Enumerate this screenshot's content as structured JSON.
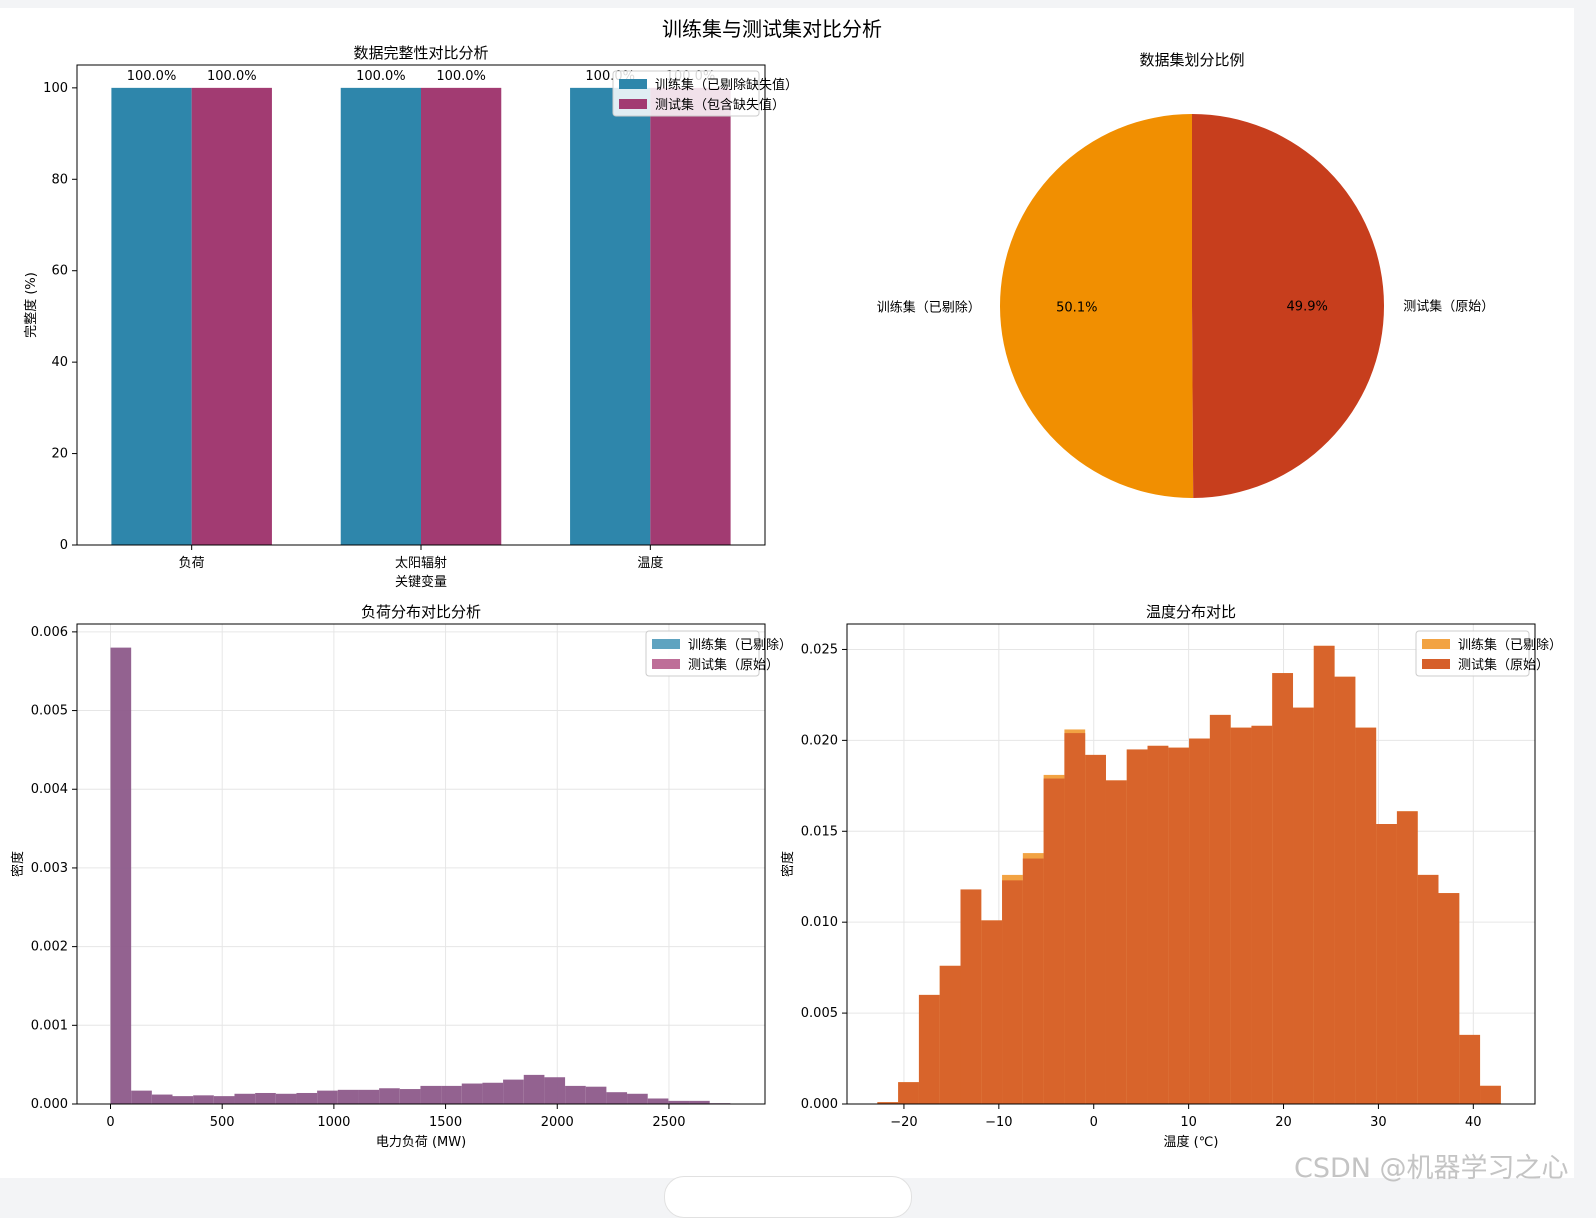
{
  "figure": {
    "suptitle": "训练集与测试集对比分析",
    "watermark": "CSDN @机器学习之心"
  },
  "colors": {
    "train_blue": "#2e86ab",
    "test_magenta": "#a23b72",
    "pie_orange": "#f18f01",
    "pie_red": "#c73e1d",
    "hist_train_blue": "#5fa3c0",
    "hist_test_pink": "#be6e98",
    "hist_overlap": "#8d5a8a",
    "temp_orange": "#f2a343",
    "temp_red": "#d65f2a"
  },
  "chart_data": [
    {
      "id": "completeness",
      "type": "bar",
      "title": "数据完整性对比分析",
      "xlabel": "关键变量",
      "ylabel": "完整度 (%)",
      "categories": [
        "负荷",
        "太阳辐射",
        "温度"
      ],
      "series": [
        {
          "name": "训练集（已剔除缺失值）",
          "values": [
            100,
            100,
            100
          ]
        },
        {
          "name": "测试集（包含缺失值）",
          "values": [
            100,
            100,
            100
          ]
        }
      ],
      "data_labels": [
        [
          "100.0%",
          "100.0%",
          "100.0%"
        ],
        [
          "100.0%",
          "100.0%",
          "100.0%"
        ]
      ],
      "ylim": [
        0,
        105
      ],
      "yticks": [
        0,
        20,
        40,
        60,
        80,
        100
      ],
      "legend": "top-right"
    },
    {
      "id": "split_ratio",
      "type": "pie",
      "title": "数据集划分比例",
      "labels": [
        "训练集（已剔除）",
        "测试集（原始）"
      ],
      "values": [
        50.1,
        49.9
      ],
      "pct_labels": [
        "50.1%",
        "49.9%"
      ]
    },
    {
      "id": "load_dist",
      "type": "histogram",
      "title": "负荷分布对比分析",
      "xlabel": "电力负荷 (MW)",
      "ylabel": "密度",
      "bin_start": 0,
      "bin_width": 92.5,
      "values": [
        0.0058,
        0.00017,
        0.00012,
        0.0001,
        0.00011,
        0.0001,
        0.00013,
        0.00014,
        0.00013,
        0.00014,
        0.00017,
        0.00018,
        0.00018,
        0.0002,
        0.00019,
        0.00023,
        0.00023,
        0.00026,
        0.00027,
        0.00031,
        0.00037,
        0.00034,
        0.00023,
        0.00022,
        0.00015,
        0.00013,
        7e-05,
        4e-05,
        4e-05,
        1e-05
      ],
      "xlim": [
        -150,
        2930
      ],
      "ylim": [
        0,
        0.0061
      ],
      "xticks": [
        0,
        500,
        1000,
        1500,
        2000,
        2500
      ],
      "yticks": [
        "0.000",
        "0.001",
        "0.002",
        "0.003",
        "0.004",
        "0.005",
        "0.006"
      ],
      "legend": [
        "训练集（已剔除）",
        "测试集（原始）"
      ]
    },
    {
      "id": "temp_dist",
      "type": "histogram",
      "title": "温度分布对比",
      "xlabel": "温度 (℃)",
      "ylabel": "密度",
      "bin_start": -22.8,
      "bin_width": 2.19,
      "train_values": [
        0.0001,
        0.0012,
        0.006,
        0.0076,
        0.0118,
        0.0101,
        0.0126,
        0.0138,
        0.0181,
        0.0206,
        0.0192,
        0.0178,
        0.0195,
        0.0197,
        0.0196,
        0.0201,
        0.0214,
        0.0207,
        0.0208,
        0.0237,
        0.0218,
        0.0252,
        0.0235,
        0.0207,
        0.0154,
        0.0161,
        0.0126,
        0.0116,
        0.0038,
        0.001
      ],
      "test_values": [
        0.0001,
        0.0012,
        0.006,
        0.0076,
        0.0118,
        0.0101,
        0.0123,
        0.0135,
        0.0179,
        0.0204,
        0.0192,
        0.0178,
        0.0195,
        0.0197,
        0.0196,
        0.0201,
        0.0214,
        0.0207,
        0.0208,
        0.0237,
        0.0218,
        0.0252,
        0.0235,
        0.0207,
        0.0154,
        0.0161,
        0.0126,
        0.0116,
        0.0038,
        0.001
      ],
      "xlim": [
        -26,
        46.5
      ],
      "ylim": [
        0,
        0.0264
      ],
      "xticks": [
        -20,
        -10,
        0,
        10,
        20,
        30,
        40
      ],
      "yticks": [
        "0.000",
        "0.005",
        "0.010",
        "0.015",
        "0.020",
        "0.025"
      ],
      "legend": [
        "训练集（已剔除）",
        "测试集（原始）"
      ]
    }
  ]
}
